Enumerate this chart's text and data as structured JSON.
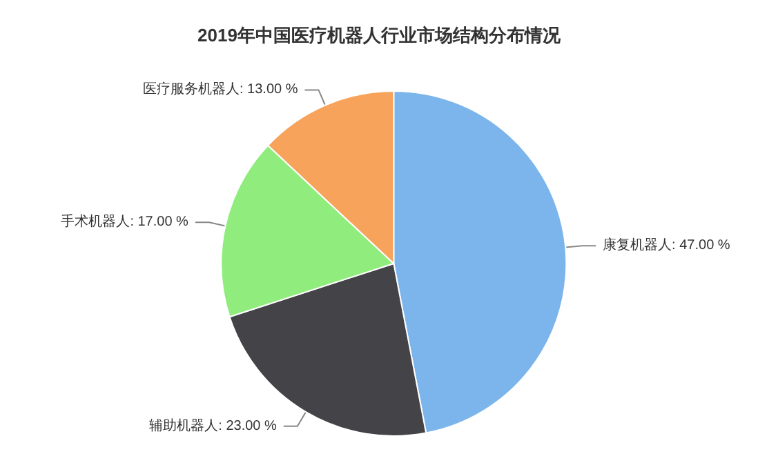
{
  "chart_data": {
    "type": "pie",
    "title": "2019年中国医疗机器人行业市场结构分布情况",
    "categories": [
      "康复机器人",
      "辅助机器人",
      "手术机器人",
      "医疗服务机器人"
    ],
    "values": [
      47,
      23,
      17,
      13
    ],
    "colors": [
      "#7cb5ec",
      "#434348",
      "#90ed7d",
      "#f7a35c"
    ],
    "value_labels": [
      "47.00 %",
      "23.00 %",
      "17.00 %",
      "13.00 %"
    ],
    "legend": false
  }
}
